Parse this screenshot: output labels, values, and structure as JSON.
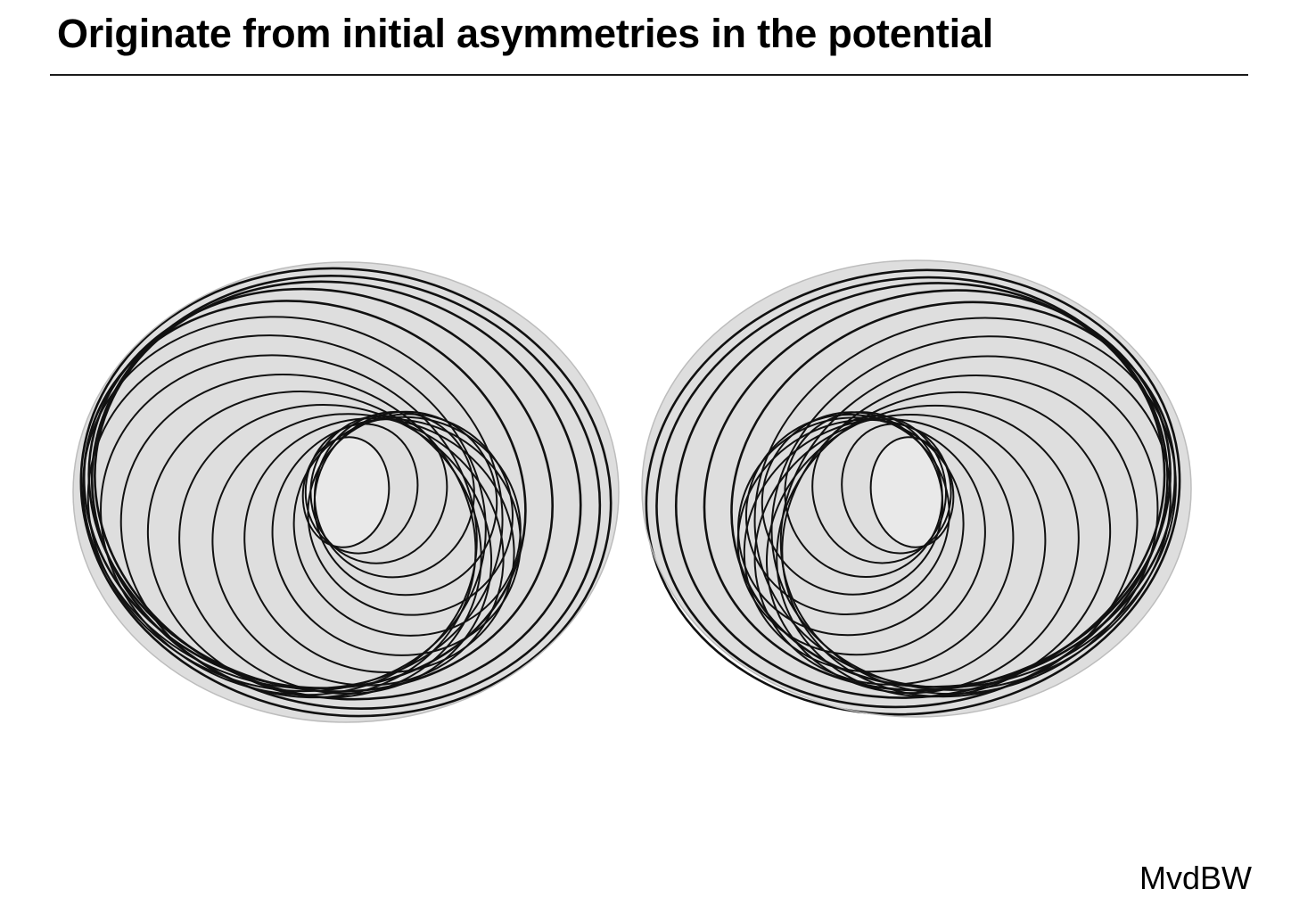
{
  "slide": {
    "title": "Originate from initial asymmetries in the potential",
    "credit": "MvdBW"
  },
  "figure": {
    "panels": [
      {
        "name": "left-wake-pattern",
        "spiral_sense": "counterclockwise",
        "ring_count": 21
      },
      {
        "name": "right-wake-pattern",
        "spiral_sense": "clockwise",
        "ring_count": 21
      }
    ],
    "colors": {
      "disc_fill": "#dedede",
      "core_fill": "#e9e9e9",
      "ring_stroke": "#111111"
    }
  }
}
